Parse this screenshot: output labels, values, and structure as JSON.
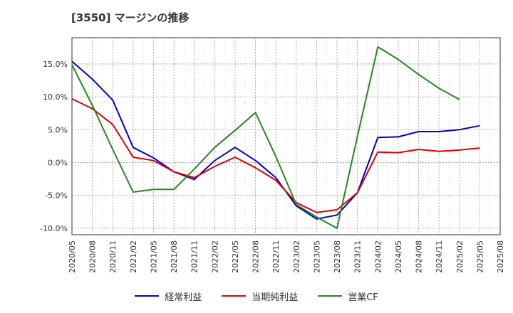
{
  "chart_data": {
    "type": "line",
    "title": "[3550]  マージンの推移",
    "xlabel": "",
    "ylabel": "",
    "x": [
      "2020/05",
      "2020/08",
      "2020/11",
      "2021/02",
      "2021/05",
      "2021/08",
      "2021/11",
      "2022/02",
      "2022/05",
      "2022/08",
      "2022/11",
      "2023/02",
      "2023/05",
      "2023/08",
      "2023/11",
      "2024/02",
      "2024/05",
      "2024/08",
      "2024/11",
      "2025/02",
      "2025/05",
      "2025/08"
    ],
    "ylim": [
      -11.0,
      19.0
    ],
    "yticks": [
      -10.0,
      -5.0,
      0.0,
      5.0,
      10.0,
      15.0
    ],
    "ytick_labels": [
      "-10.0%",
      "-5.0%",
      "0.0%",
      "5.0%",
      "10.0%",
      "15.0%"
    ],
    "grid": true,
    "legend_position": "bottom",
    "series": [
      {
        "name": "経常利益",
        "color": "#0000cc",
        "values": [
          15.4,
          12.7,
          9.5,
          2.3,
          0.7,
          -1.4,
          -2.6,
          0.3,
          2.3,
          0.3,
          -2.3,
          -6.6,
          -8.6,
          -8.0,
          -4.6,
          3.8,
          3.9,
          4.7,
          4.7,
          5.0,
          5.6,
          null
        ]
      },
      {
        "name": "当期純利益",
        "color": "#dd0000",
        "values": [
          9.7,
          8.2,
          5.8,
          0.8,
          0.3,
          -1.4,
          -2.3,
          -0.6,
          0.8,
          -0.8,
          -2.7,
          -6.1,
          -7.6,
          -7.2,
          -4.6,
          1.6,
          1.5,
          2.0,
          1.7,
          1.9,
          2.2,
          null
        ]
      },
      {
        "name": "営業CF",
        "color": "#228822",
        "values": [
          14.9,
          8.7,
          2.0,
          -4.5,
          -4.1,
          -4.1,
          -1.0,
          2.3,
          4.9,
          7.6,
          0.9,
          -6.4,
          -8.3,
          -10.0,
          4.0,
          17.6,
          15.7,
          13.4,
          11.3,
          9.6,
          null,
          null
        ]
      }
    ]
  }
}
